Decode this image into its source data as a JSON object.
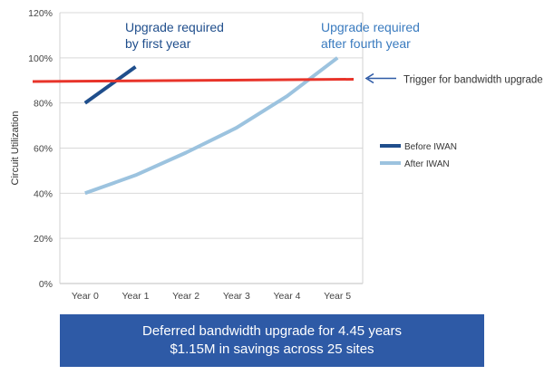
{
  "chart_data": {
    "type": "line",
    "ylabel": "Circuit Utilization",
    "categories": [
      "Year 0",
      "Year 1",
      "Year 2",
      "Year 3",
      "Year 4",
      "Year 5"
    ],
    "y_ticks": [
      "0%",
      "20%",
      "40%",
      "60%",
      "80%",
      "100%",
      "120%"
    ],
    "ylim": [
      0,
      120
    ],
    "grid": true,
    "legend": "right",
    "series": [
      {
        "name": "Before IWAN",
        "color": "#1f4e8c",
        "x": [
          0,
          1
        ],
        "values": [
          80,
          96
        ]
      },
      {
        "name": "After IWAN",
        "color": "#9cc3df",
        "x": [
          0,
          1,
          2,
          3,
          4,
          5
        ],
        "values": [
          40,
          48,
          58,
          69,
          83,
          100
        ]
      }
    ],
    "threshold": {
      "value": 89.5,
      "value_end": 90.5,
      "color": "#e8342a",
      "label": "Trigger for bandwidth upgrade"
    },
    "annotations": [
      {
        "line1": "Upgrade required",
        "line2": "by first year",
        "color": "#1f4e8c"
      },
      {
        "line1": "Upgrade required",
        "line2": "after fourth year",
        "color": "#3a7bbf"
      }
    ]
  },
  "banner": {
    "line1": "Deferred bandwidth upgrade for 4.45 years",
    "line2": "$1.15M in savings across 25 sites"
  }
}
